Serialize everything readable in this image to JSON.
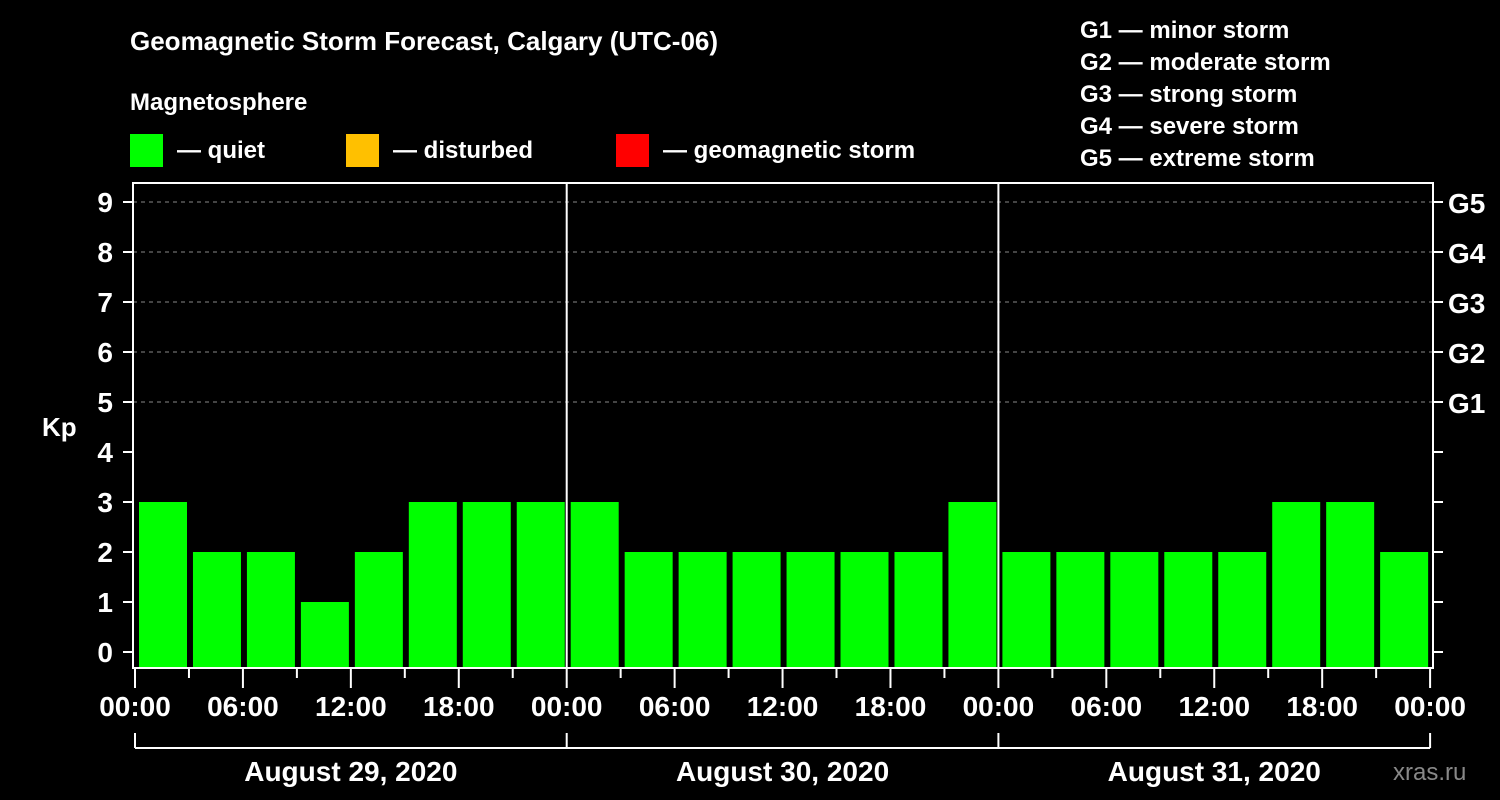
{
  "chart_data": {
    "type": "bar",
    "title": "Geomagnetic Storm Forecast, Calgary (UTC-06)",
    "legend_title": "Magnetosphere",
    "legend": [
      {
        "label": "— quiet",
        "color": "#00ff00"
      },
      {
        "label": "— disturbed",
        "color": "#ffc000"
      },
      {
        "label": "— geomagnetic storm",
        "color": "#ff0000"
      }
    ],
    "storm_scale": [
      "G1 — minor storm",
      "G2 — moderate storm",
      "G3 — strong storm",
      "G4 — severe storm",
      "G5 — extreme storm"
    ],
    "ylabel": "Kp",
    "ylim": [
      0,
      9
    ],
    "yticks": [
      "0",
      "1",
      "2",
      "3",
      "4",
      "5",
      "6",
      "7",
      "8",
      "9"
    ],
    "right_ticks": [
      {
        "kp": 5,
        "label": "G1"
      },
      {
        "kp": 6,
        "label": "G2"
      },
      {
        "kp": 7,
        "label": "G3"
      },
      {
        "kp": 8,
        "label": "G4"
      },
      {
        "kp": 9,
        "label": "G5"
      }
    ],
    "xtick_labels": [
      "00:00",
      "06:00",
      "12:00",
      "18:00",
      "00:00",
      "06:00",
      "12:00",
      "18:00",
      "00:00",
      "06:00",
      "12:00",
      "18:00",
      "00:00"
    ],
    "days": [
      {
        "label": "August 29, 2020",
        "values": [
          3,
          2,
          2,
          1,
          2,
          3,
          3,
          3
        ]
      },
      {
        "label": "August 30, 2020",
        "values": [
          3,
          2,
          2,
          2,
          2,
          2,
          2,
          3
        ]
      },
      {
        "label": "August 31, 2020",
        "values": [
          2,
          2,
          2,
          2,
          2,
          3,
          3,
          2
        ]
      }
    ],
    "grid": true
  },
  "watermark": "xras.ru"
}
